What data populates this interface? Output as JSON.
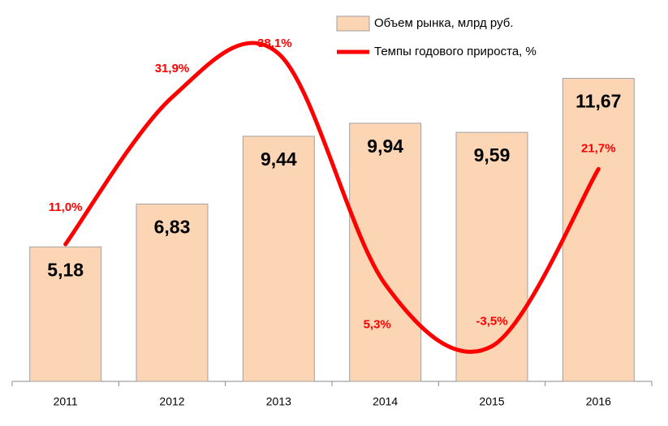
{
  "chart_data": {
    "type": "bar",
    "categories": [
      "2011",
      "2012",
      "2013",
      "2014",
      "2015",
      "2016"
    ],
    "series": [
      {
        "name": "Объем рынка, млрд руб.",
        "type": "bar",
        "color": "#fcd5b5",
        "values": [
          5.18,
          6.83,
          9.44,
          9.94,
          9.59,
          11.67
        ],
        "value_labels": [
          "5,18",
          "6,83",
          "9,44",
          "9,94",
          "9,59",
          "11,67"
        ]
      },
      {
        "name": "Темпы годового прироста, %",
        "type": "line",
        "axis": "y2",
        "color": "#ff0000",
        "values": [
          11.0,
          31.9,
          38.1,
          5.3,
          -3.5,
          21.7
        ],
        "value_labels": [
          "11,0%",
          "31,9%",
          "38,1%",
          "5,3%",
          "-3,5%",
          "21,7%"
        ]
      }
    ],
    "ylim": [
      0,
      14
    ],
    "y2lim": [
      -8.5,
      43.2
    ]
  }
}
